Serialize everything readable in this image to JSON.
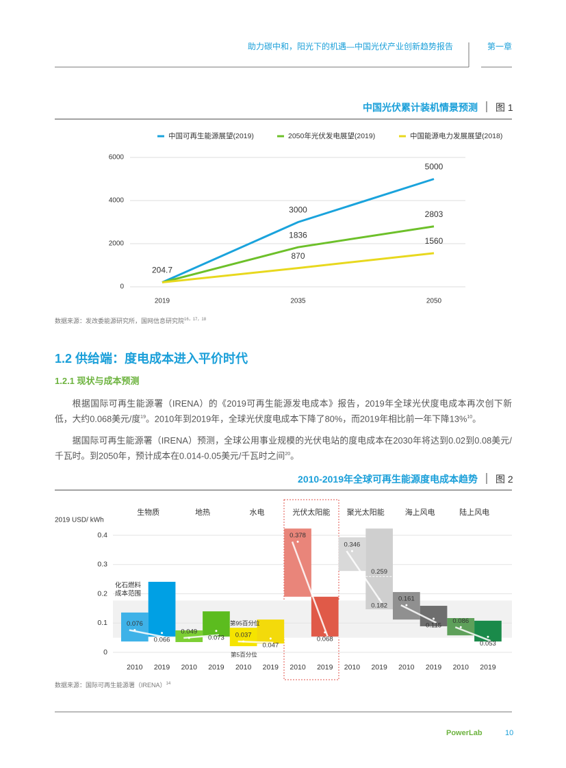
{
  "header": {
    "title": "助力碳中和，阳光下的机遇—中国光伏产业创新趋势报告",
    "chapter": "第一章"
  },
  "chart_data": [
    {
      "type": "line",
      "title": "中国光伏累计装机情景预测",
      "figure_label": "图 1",
      "categories": [
        "2019",
        "2035",
        "2050"
      ],
      "series": [
        {
          "name": "中国可再生能源展望(2019)",
          "color": "#1aa3dc",
          "values": [
            204.7,
            3000,
            5000
          ]
        },
        {
          "name": "2050年光伏发电展望(2019)",
          "color": "#6dc02a",
          "values": [
            204.7,
            1836,
            2803
          ]
        },
        {
          "name": "中国能源电力发展展望(2018)",
          "color": "#e8d81e",
          "values": [
            204.7,
            870,
            1560
          ]
        }
      ],
      "ylim": [
        0,
        6000
      ],
      "yticks": [
        0,
        2000,
        4000,
        6000
      ],
      "grid": true,
      "source": "数据来源：发改委能源研究所，国网信息研究院",
      "source_refs": "16，17，18"
    },
    {
      "type": "range-bar",
      "title": "2010-2019年全球可再生能源度电成本趋势",
      "figure_label": "图 2",
      "y_label": "2019 USD/ kWh",
      "categories": [
        "生物质",
        "地热",
        "水电",
        "光伏太阳能",
        "聚光太阳能",
        "海上风电",
        "陆上风电"
      ],
      "series": [
        {
          "name": "2010",
          "colors": [
            "#3eb2e8",
            "#7ccf34",
            "#f5e400",
            "#e9857a",
            "#d9d9d9",
            "#909090",
            "#5ea05a"
          ],
          "low": [
            0.037,
            0.035,
            0.021,
            0.19,
            0.278,
            0.112,
            0.058
          ],
          "high": [
            0.136,
            0.075,
            0.084,
            0.423,
            0.393,
            0.206,
            0.117
          ],
          "values": [
            0.076,
            0.049,
            0.037,
            0.378,
            0.346,
            0.161,
            0.086
          ]
        },
        {
          "name": "2019",
          "colors": [
            "#00a0e4",
            "#5cbc1f",
            "#f3da0b",
            "#e05a48",
            "#cfcfcf",
            "#6e6e6e",
            "#1a8a4a"
          ],
          "low": [
            0.054,
            0.054,
            0.03,
            0.054,
            0.147,
            0.089,
            0.037
          ],
          "high": [
            0.241,
            0.14,
            0.112,
            0.19,
            0.423,
            0.159,
            0.108
          ],
          "values": [
            0.066,
            0.073,
            0.047,
            0.068,
            0.182,
            0.115,
            0.053
          ]
        }
      ],
      "ylim": [
        0,
        0.4
      ],
      "yticks": [
        0,
        0.1,
        0.2,
        0.3,
        0.4
      ],
      "grid": true,
      "fossil_fuel_range": {
        "label": "化石燃料成本范围",
        "low": 0.05,
        "high": 0.177
      },
      "percentile_labels": {
        "high": "第95百分位",
        "low": "第5百分位"
      },
      "annotations": [
        {
          "value": 0.259
        }
      ],
      "source": "数据来源：国际可再生能源署（IRENA）",
      "source_refs": "14"
    }
  ],
  "section": {
    "title": "1.2 供给端：度电成本进入平价时代",
    "subtitle": "1.2.1 现状与成本预测"
  },
  "paragraphs": [
    [
      "根据国际可再生能源署（IRENA）的《2019可再生能源发电成本》报告，2019年全球光伏度电成本再次创下新低，大约0.068美元/度",
      "19",
      "。2010年到2019年，全球光伏度电成本下降了80%，而2019年相比前一年下降13%",
      "10",
      "。"
    ],
    [
      "据国际可再生能源署（IRENA）预测，全球公用事业规模的光伏电站的度电成本在2030年将达到0.02到0.08美元/千瓦时。到2050年，预计成本在0.014-0.05美元/千瓦时之间",
      "20",
      "。"
    ]
  ],
  "footer": {
    "brand": "PowerLab",
    "page": 10
  }
}
